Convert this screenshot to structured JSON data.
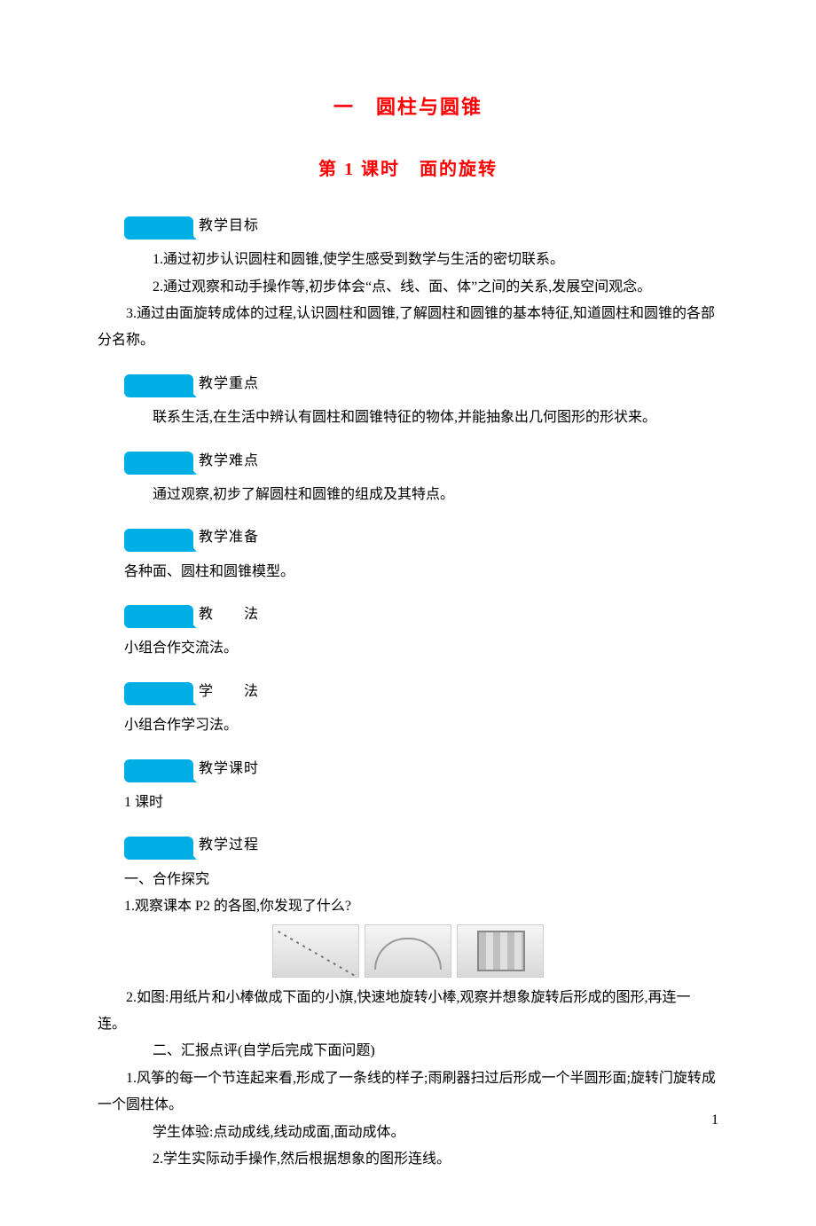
{
  "title_main": "一　圆柱与圆锥",
  "title_sub": "第 1 课时　面的旋转",
  "sections": {
    "goal": {
      "label": "教学目标",
      "items": [
        "1.通过初步认识圆柱和圆锥,使学生感受到数学与生活的密切联系。",
        "2.通过观察和动手操作等,初步体会“点、线、面、体”之间的关系,发展空间观念。",
        "3.通过由面旋转成体的过程,认识圆柱和圆锥,了解圆柱和圆锥的基本特征,知道圆柱和圆锥的各部分名称。"
      ]
    },
    "focus": {
      "label": "教学重点",
      "text": "联系生活,在生活中辨认有圆柱和圆锥特征的物体,并能抽象出几何图形的形状来。"
    },
    "difficulty": {
      "label": "教学难点",
      "text": "通过观察,初步了解圆柱和圆锥的组成及其特点。"
    },
    "prep": {
      "label": "教学准备",
      "text": "各种面、圆柱和圆锥模型。"
    },
    "teach_method": {
      "label": "教　　法",
      "text": "小组合作交流法。"
    },
    "learn_method": {
      "label": "学　　法",
      "text": "小组合作学习法。"
    },
    "periods": {
      "label": "教学课时",
      "text": "1 课时"
    },
    "process": {
      "label": "教学过程",
      "heading1": "一、合作探究",
      "p1": "1.观察课本 P2 的各图,你发现了什么?",
      "p2": "2.如图:用纸片和小棒做成下面的小旗,快速地旋转小棒,观察并想象旋转后形成的图形,再连一连。",
      "heading2": "二、汇报点评(自学后完成下面问题)",
      "p3": "1.风筝的每一个节连起来看,形成了一条线的样子;雨刷器扫过后形成一个半圆形面;旋转门旋转成一个圆柱体。",
      "p4": "学生体验:点动成线,线动成面,面动成体。",
      "p5": "2.学生实际动手操作,然后根据想象的图形连线。"
    }
  },
  "page_number": "1",
  "colors": {
    "accent": "#ff0000",
    "tag_bg": "#00aee6",
    "text": "#000000",
    "background": "#ffffff"
  }
}
